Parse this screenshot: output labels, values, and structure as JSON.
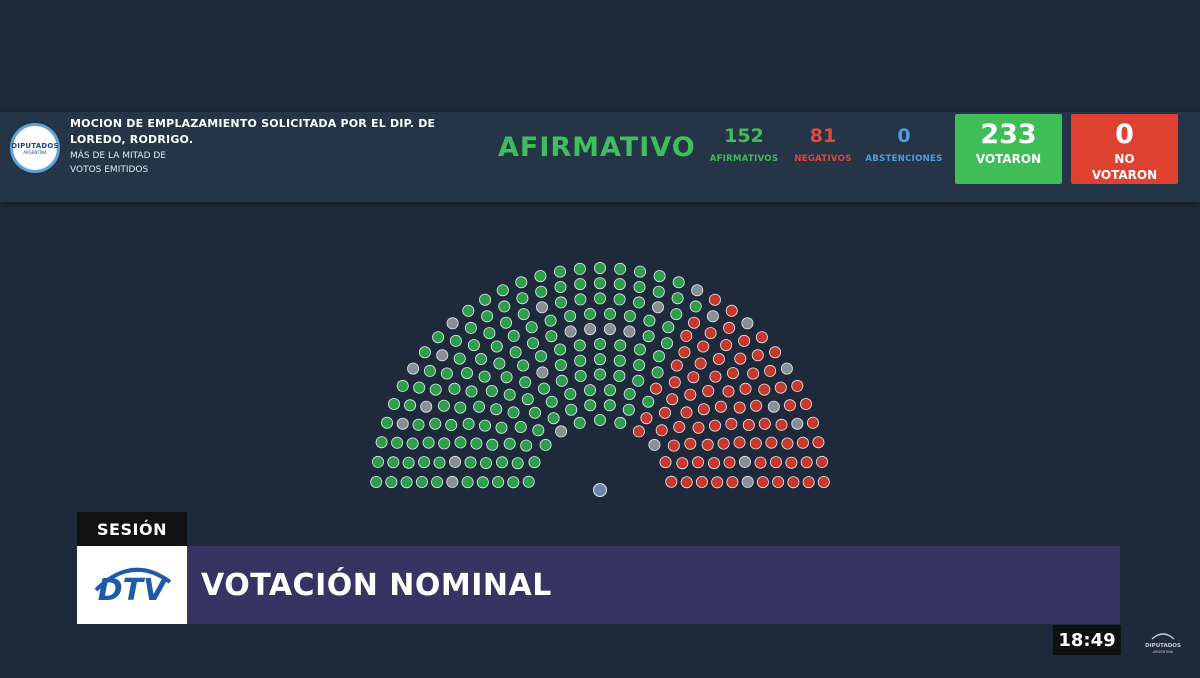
{
  "header": {
    "logo_text": "DIPUTADOS",
    "logo_subtext": "ARGENTINA",
    "motion_title": "MOCION DE EMPLAZAMIENTO SOLICITADA POR EL DIP. DE LOREDO, RODRIGO.",
    "majority_line1": "MÁS DE LA MITAD DE",
    "majority_line2": "VOTOS EMITIDOS",
    "result": "AFIRMATIVO",
    "counts": {
      "afirmativos": {
        "value": "152",
        "label": "AFIRMATIVOS"
      },
      "negativos": {
        "value": "81",
        "label": "NEGATIVOS"
      },
      "abstenciones": {
        "value": "0",
        "label": "ABSTENCIONES"
      }
    },
    "votaron": {
      "value": "233",
      "label": "VOTARON"
    },
    "no_votaron": {
      "value": "0",
      "label_line1": "NO",
      "label_line2": "VOTARON"
    }
  },
  "chamber": {
    "total_seats": 257,
    "afirmativos": 152,
    "negativos": 81,
    "no_vote": 24,
    "colors": {
      "afirmativo": "#2e9e4a",
      "negativo": "#c9382c",
      "no_vote": "#8a8f96",
      "president": "#6e86a6"
    }
  },
  "lower_third": {
    "tag": "SESIÓN",
    "title": "VOTACIÓN NOMINAL",
    "channel_logo": "DTV"
  },
  "clock": "18:49",
  "corner_logo": {
    "text": "DIPUTADOS",
    "subtext": "ARGENTINA"
  },
  "colors": {
    "background": "#1e2a3b",
    "header_bg": "#263448",
    "green": "#3fbf5b",
    "red": "#e04b3e",
    "blue": "#4f9ede",
    "lower_bar": "#373363"
  }
}
